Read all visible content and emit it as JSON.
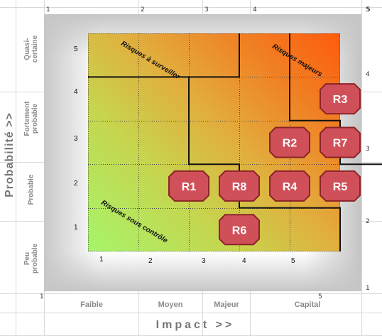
{
  "chart_data": {
    "type": "scatter",
    "title": "",
    "xlabel": "Impact >>",
    "ylabel": "Probabilité >>",
    "xlim": [
      0.5,
      5.5
    ],
    "ylim": [
      0.5,
      5.5
    ],
    "x_ticks": [
      "1",
      "2",
      "3",
      "4",
      "5"
    ],
    "y_ticks": [
      "1",
      "2",
      "3",
      "4",
      "5"
    ],
    "x_categories": [
      "Faible",
      "Moyen",
      "Majeur",
      "Capital"
    ],
    "y_categories": [
      "Peu\nprobable",
      "Probable",
      "Fortement\nprobable",
      "Quasi-\ncertaine"
    ],
    "grid": true,
    "background": "gradient green (low impact, low probability) to orange-red (high impact, high probability)",
    "colors": {
      "risk_fill": "#d0505a",
      "risk_stroke": "#8a2428",
      "zone_line": "#111111"
    },
    "points": [
      {
        "label": "R1",
        "x": 2.5,
        "y": 2
      },
      {
        "label": "R2",
        "x": 4.5,
        "y": 3
      },
      {
        "label": "R3",
        "x": 5.5,
        "y": 4
      },
      {
        "label": "R4",
        "x": 4.5,
        "y": 2
      },
      {
        "label": "R5",
        "x": 5.5,
        "y": 2
      },
      {
        "label": "R6",
        "x": 3.5,
        "y": 1
      },
      {
        "label": "R7",
        "x": 5.5,
        "y": 3
      },
      {
        "label": "R8",
        "x": 3.5,
        "y": 2
      }
    ],
    "zones": [
      "Risques à surveiller",
      "Risques majeurs",
      "Risques sous contrôle"
    ]
  },
  "sheet": {
    "top_ticks": [
      "1",
      "2",
      "3",
      "4",
      "5"
    ],
    "right_ticks": [
      "5",
      "4",
      "3",
      "2",
      "1"
    ],
    "left_tick": "1",
    "bottom_tick": "5"
  }
}
